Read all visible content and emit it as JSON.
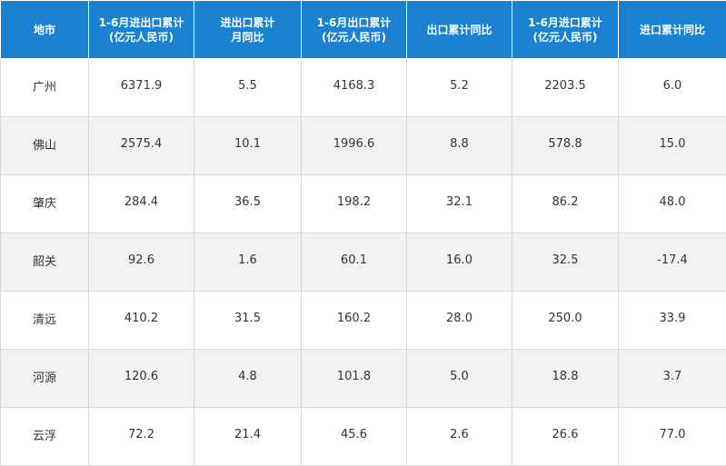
{
  "table": {
    "header": [
      [
        "地市"
      ],
      [
        "1-6月进出口累计",
        "(亿元人民币)"
      ],
      [
        "进出口累计",
        "月同比"
      ],
      [
        "1-6月出口累计",
        "(亿元人民币)"
      ],
      [
        "出口累计同比"
      ],
      [
        "1-6月进口累计",
        "(亿元人民币)"
      ],
      [
        "进口累计同比"
      ]
    ],
    "rows": [
      [
        "广州",
        "6371.9",
        "5.5",
        "4168.3",
        "5.2",
        "2203.5",
        "6.0"
      ],
      [
        "佛山",
        "2575.4",
        "10.1",
        "1996.6",
        "8.8",
        "578.8",
        "15.0"
      ],
      [
        "肇庆",
        "284.4",
        "36.5",
        "198.2",
        "32.1",
        "86.2",
        "48.0"
      ],
      [
        "韶关",
        "92.6",
        "1.6",
        "60.1",
        "16.0",
        "32.5",
        "-17.4"
      ],
      [
        "清远",
        "410.2",
        "31.5",
        "160.2",
        "28.0",
        "250.0",
        "33.9"
      ],
      [
        "河源",
        "120.6",
        "4.8",
        "101.8",
        "5.0",
        "18.8",
        "3.7"
      ],
      [
        "云浮",
        "72.2",
        "21.4",
        "45.6",
        "2.6",
        "26.6",
        "77.0"
      ]
    ]
  }
}
